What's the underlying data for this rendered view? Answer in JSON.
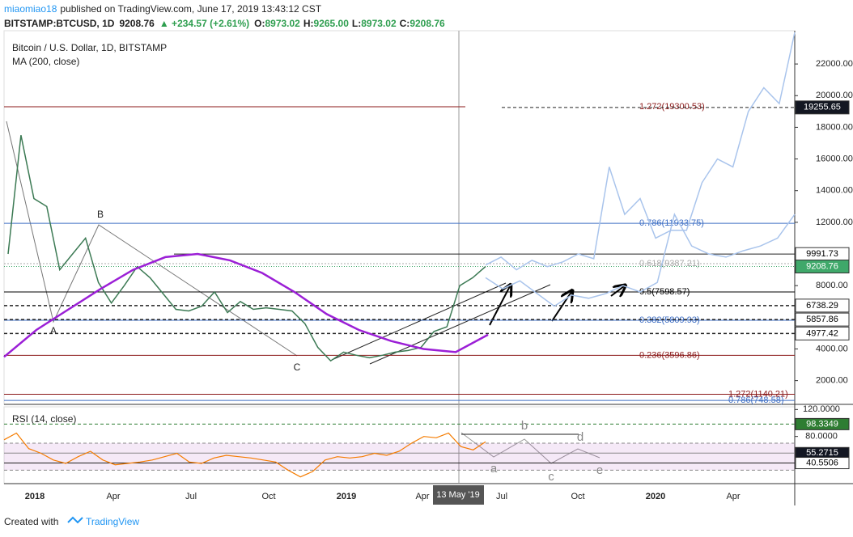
{
  "header": {
    "author": "miaomiao18",
    "published": "published on TradingView.com, June 17, 2019 13:43:12 CST"
  },
  "quote": {
    "symbol": "BITSTAMP:BTCUSD, 1D",
    "last": "9208.76",
    "change": "▲ +234.57 (+2.61%)",
    "ohlc": [
      {
        "label": "O:",
        "value": "8973.02"
      },
      {
        "label": "H:",
        "value": "9265.00"
      },
      {
        "label": "L:",
        "value": "8973.02"
      },
      {
        "label": "C:",
        "value": "9208.76"
      }
    ]
  },
  "chart_data": [
    {
      "type": "line",
      "title": "Bitcoin / U.S. Dollar, 1D, BITSTAMP",
      "ylim": [
        500,
        24100
      ],
      "yticks": [
        {
          "value": 2000,
          "label": "2000.00"
        },
        {
          "value": 4000,
          "label": "4000.00"
        },
        {
          "value": 8000,
          "label": "8000.00"
        },
        {
          "value": 12000,
          "label": "12000.00"
        },
        {
          "value": 14000,
          "label": "14000.00"
        },
        {
          "value": 16000,
          "label": "16000.00"
        },
        {
          "value": 18000,
          "label": "18000.00"
        },
        {
          "value": 20000,
          "label": "20000.00"
        },
        {
          "value": 22000,
          "label": "22000.00"
        }
      ],
      "series": [
        {
          "color": "#3c7a54",
          "values": [
            10000,
            17500,
            13500,
            13000,
            9000,
            10000,
            11000,
            8200,
            6900,
            8000,
            9200,
            8500,
            7500,
            6500,
            6400,
            6700,
            7600,
            6300,
            7000,
            6500,
            6600,
            6500,
            6400,
            5600,
            4100,
            3250,
            3800,
            3600,
            3450,
            3600,
            3800,
            3900,
            4100,
            5100,
            5400,
            8000,
            8500,
            9208.76
          ]
        },
        {
          "name": "MA (200, close)",
          "color": "#9b1fd6",
          "values": [
            3500,
            5200,
            6500,
            7800,
            9000,
            9800,
            10000,
            9600,
            8800,
            7600,
            6200,
            5200,
            4500,
            4000,
            3800,
            4900
          ]
        },
        {
          "color": "#a9c4ec",
          "values": [
            9300,
            9800,
            9000,
            9600,
            9200,
            9500,
            10000,
            9700,
            15500,
            12500,
            13500,
            11000,
            11500,
            11500,
            14500,
            16000,
            15500,
            19000,
            20500,
            19500,
            24000
          ]
        },
        {
          "color": "#a9c4ec",
          "values": [
            8500,
            7800,
            8300,
            7500,
            6700,
            7400,
            7200,
            7500,
            8000,
            7600,
            8200,
            12500,
            10500,
            10000,
            9800,
            10200,
            10500,
            11000,
            12500
          ]
        }
      ],
      "price_labels": [
        19255.65,
        9991.73,
        9208.76,
        6738.29,
        5857.86,
        4977.42
      ],
      "fib_levels": [
        {
          "label": "1.272(19300.53)",
          "value": 19300.53,
          "color": "#8b1a1a"
        },
        {
          "label": "0.786(11933.75)",
          "value": 11933.75,
          "color": "#3f6fc4"
        },
        {
          "label": "0.618(9387.21)",
          "value": 9387.21,
          "color": "#aaaaaa"
        },
        {
          "label": "0.5(7598.57)",
          "value": 7598.57,
          "color": "#000000"
        },
        {
          "label": "0.382(5809.93)",
          "value": 5809.93,
          "color": "#3f6fc4"
        },
        {
          "label": "0.236(3596.86)",
          "value": 3596.86,
          "color": "#8b1a1a"
        },
        {
          "label": "1.272(1140.21)",
          "value": 1140.21,
          "color": "#8b1a1a"
        },
        {
          "label": "0.786(748.58)",
          "value": 748.58,
          "color": "#3f6fc4"
        }
      ],
      "annotations": [
        "A",
        "B",
        "C"
      ]
    },
    {
      "type": "line",
      "title": "RSI (14, close)",
      "ylim": [
        10,
        124
      ],
      "yticks": [
        {
          "value": 120,
          "label": "120.0000"
        },
        {
          "value": 80,
          "label": "80.0000"
        }
      ],
      "series": [
        {
          "color": "#f57c00",
          "values": [
            75,
            85,
            62,
            55,
            45,
            40,
            50,
            58,
            45,
            38,
            40,
            42,
            45,
            50,
            55,
            42,
            40,
            48,
            52,
            50,
            48,
            45,
            42,
            30,
            20,
            28,
            45,
            50,
            48,
            50,
            55,
            52,
            58,
            70,
            80,
            78,
            85,
            65,
            60,
            72
          ]
        }
      ],
      "band": [
        30,
        70
      ],
      "markers": [
        98.3349,
        55.2715,
        40.5506
      ],
      "wave_labels": [
        "a",
        "b",
        "c",
        "d",
        "e"
      ]
    }
  ],
  "time_axis": {
    "labels": [
      "2018",
      "Apr",
      "Jul",
      "Oct",
      "2019",
      "Apr",
      "Jul",
      "Oct",
      "2020",
      "Apr"
    ],
    "cursor": "13 May '19"
  },
  "footer": {
    "text": "Created with",
    "brand": "TradingView"
  }
}
